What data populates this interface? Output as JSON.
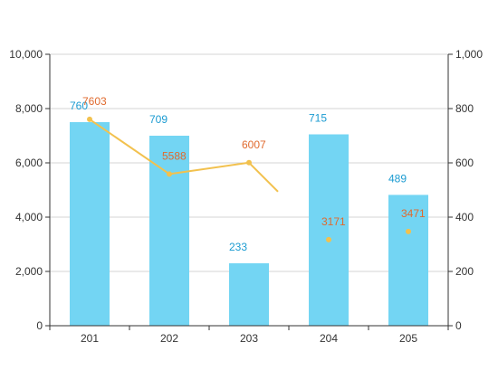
{
  "chart_data": {
    "type": "bar",
    "categories": [
      "201",
      "202",
      "203",
      "204",
      "205"
    ],
    "series": [
      {
        "type": "bar",
        "axis": "left",
        "values": [
          7500,
          7000,
          2300,
          7050,
          4820
        ],
        "labels": [
          "760",
          "709",
          "233",
          "715",
          "489"
        ],
        "color": "#73d5f3",
        "label_color": "#1b9bd1"
      },
      {
        "type": "line",
        "axis": "left",
        "values": [
          7603,
          5588,
          6007,
          3171,
          3471
        ],
        "labels": [
          "7603",
          "5588",
          "6007",
          "3171",
          "3471"
        ],
        "color": "#f2c14e",
        "label_color": "#e06a2e",
        "connected_segments": [
          [
            0,
            1
          ],
          [
            1,
            2
          ]
        ]
      }
    ],
    "y_left": {
      "ylim": [
        0,
        10000
      ],
      "ticks": [
        0,
        2000,
        4000,
        6000,
        8000,
        10000
      ],
      "tick_labels": [
        "0",
        "2,000",
        "4,000",
        "6,000",
        "8,000",
        "10,000"
      ]
    },
    "y_right": {
      "ylim": [
        0,
        1000
      ],
      "ticks": [
        0,
        200,
        400,
        600,
        800,
        1000
      ],
      "tick_labels": [
        "0",
        "200",
        "400",
        "600",
        "800",
        "1,000"
      ]
    },
    "grid": true,
    "legend": "none",
    "title": "",
    "xlabel": "",
    "ylabel": ""
  }
}
